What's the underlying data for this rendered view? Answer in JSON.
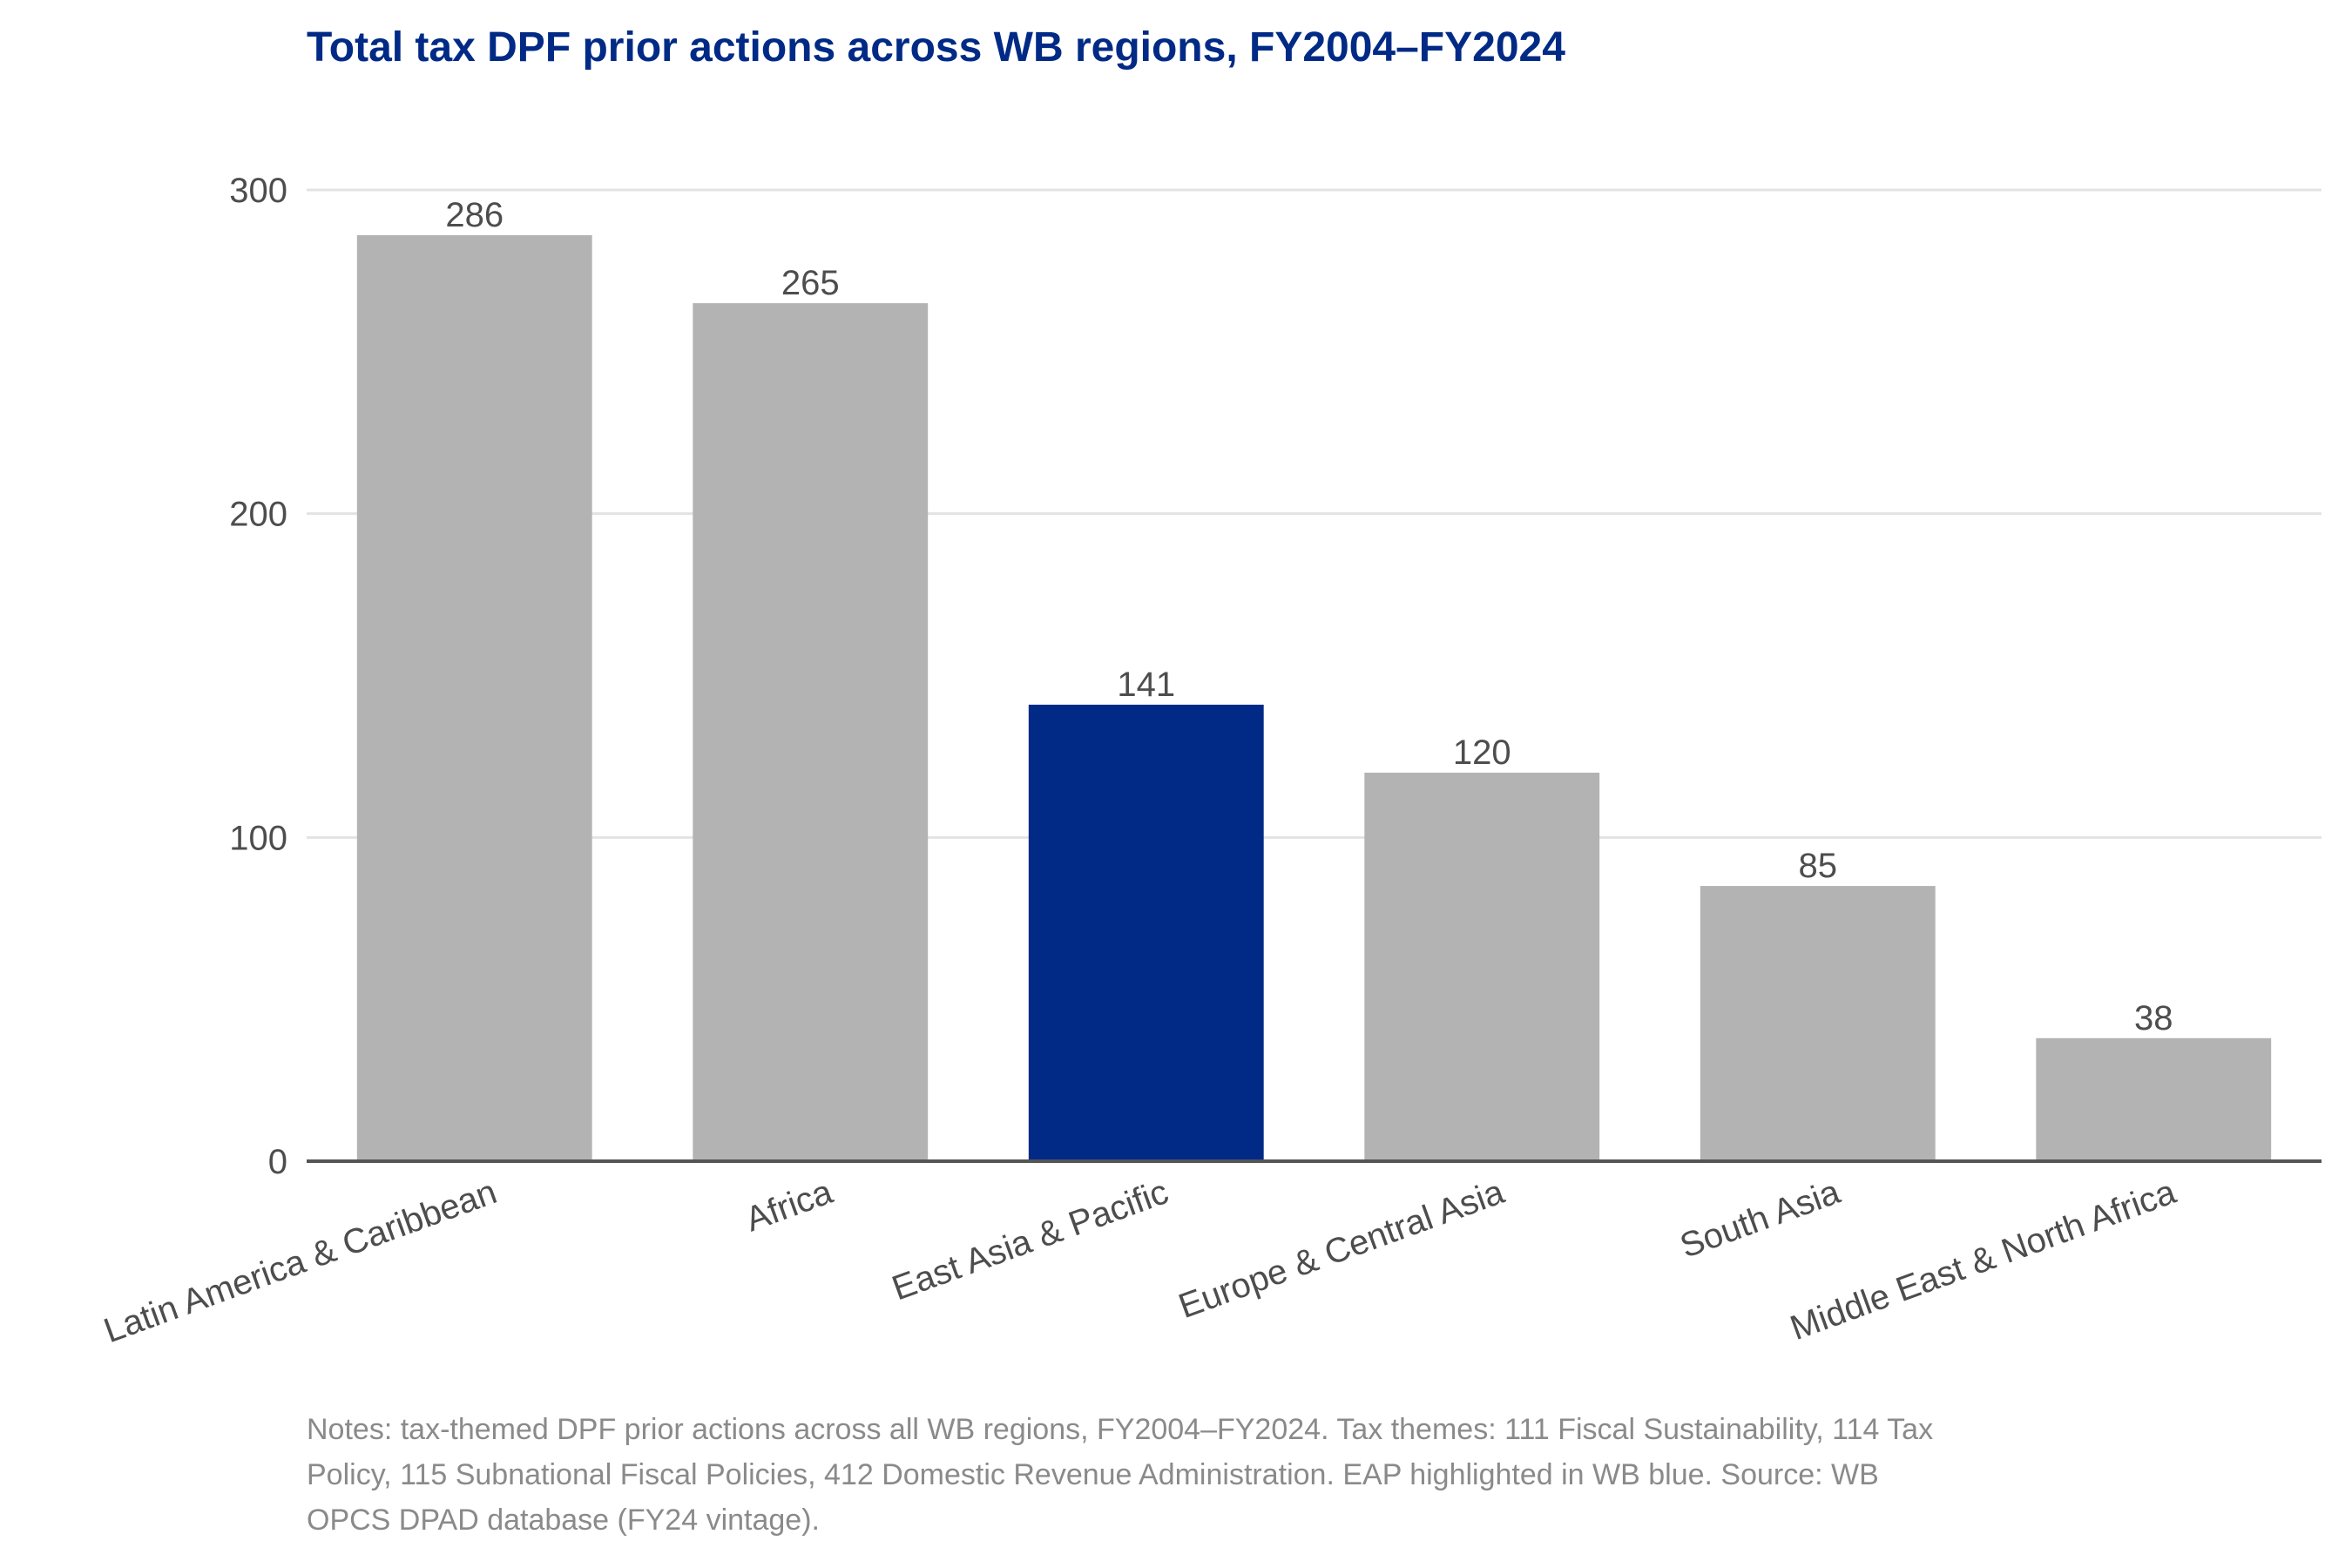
{
  "chart_data": {
    "type": "bar",
    "title": "Total tax DPF prior actions across WB regions, FY2004–FY2024",
    "xlabel": "",
    "ylabel": "",
    "categories": [
      "Latin America & Caribbean",
      "Africa",
      "East Asia & Pacific",
      "Europe & Central Asia",
      "South Asia",
      "Middle East & North Africa"
    ],
    "values": [
      286,
      265,
      141,
      120,
      85,
      38
    ],
    "data_labels": [
      "286",
      "265",
      "141",
      "120",
      "85",
      "38"
    ],
    "highlight_category": "East Asia & Pacific",
    "colors": {
      "default_bar": "#b3b3b3",
      "highlight_bar": "#002a86",
      "title": "#002a86",
      "text": "#4d4d4d",
      "grid": "#e3e3e3",
      "axis": "#555555",
      "notes": "#8a8a8a"
    },
    "ylim": [
      0,
      300
    ],
    "yticks": [
      0,
      100,
      200,
      300
    ],
    "ytick_labels": [
      "0",
      "100",
      "200",
      "300"
    ],
    "grid": true,
    "legend": "none"
  },
  "notes": "Notes: tax-themed DPF prior actions across all WB regions, FY2004–FY2024. Tax themes: 111 Fiscal Sustainability, 114 Tax Policy, 115 Subnational Fiscal Policies, 412 Domestic Revenue Administration. EAP highlighted in WB blue. Source: WB OPCS DPAD database (FY24 vintage)."
}
